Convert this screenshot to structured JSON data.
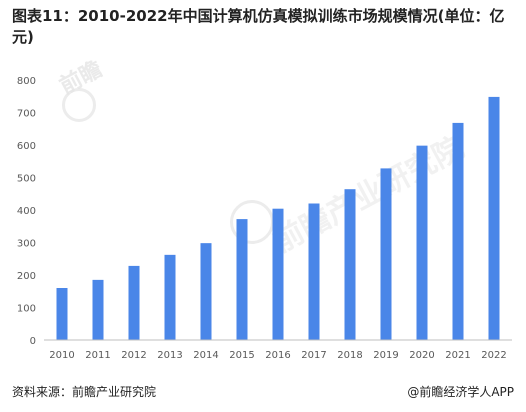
{
  "title": "图表11：2010-2022年中国计算机仿真模拟训练市场规模情况(单位：亿元)",
  "watermark": "前瞻产业研究院",
  "watermark_small": "前瞻",
  "source": "资料来源：前瞻产业研究院",
  "credit": "@前瞻经济学人APP",
  "colors": {
    "bar": "#4a86e8",
    "axis": "#bfbfbf",
    "text": "#595959"
  },
  "chart_data": {
    "type": "bar",
    "categories": [
      "2010",
      "2011",
      "2012",
      "2013",
      "2014",
      "2015",
      "2016",
      "2017",
      "2018",
      "2019",
      "2020",
      "2021",
      "2022"
    ],
    "values": [
      160,
      185,
      228,
      262,
      298,
      372,
      404,
      420,
      464,
      528,
      598,
      668,
      748
    ],
    "ylim": [
      0,
      800
    ],
    "yticks": [
      "0",
      "100",
      "200",
      "300",
      "400",
      "500",
      "600",
      "700",
      "800"
    ],
    "grid": false,
    "xlabel": "",
    "ylabel": ""
  }
}
